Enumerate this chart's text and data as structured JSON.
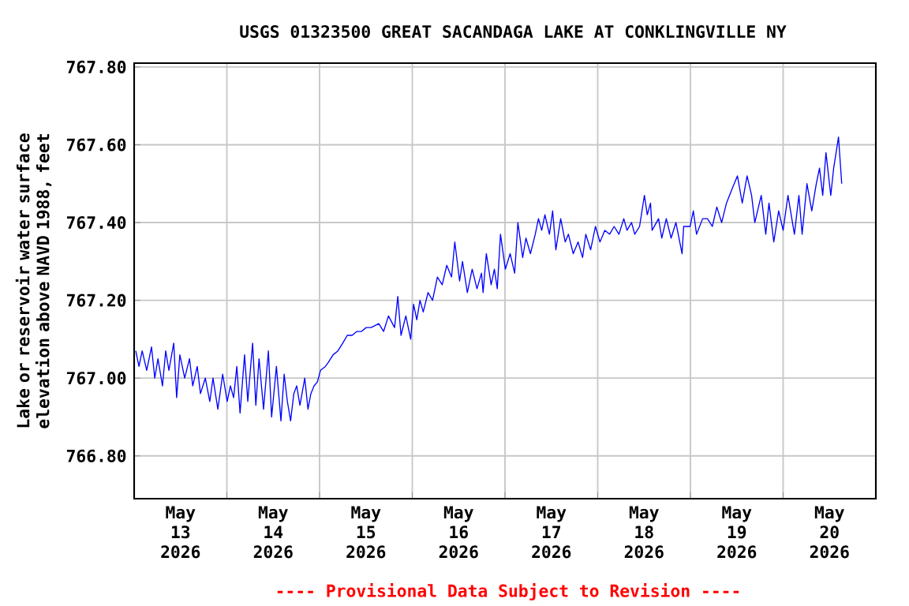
{
  "chart_data": {
    "type": "line",
    "title": "USGS 01323500 GREAT SACANDAGA LAKE AT CONKLINGVILLE NY",
    "ylabel": "Lake or reservoir water surface elevation above NAVD 1988, feet",
    "annotations": [
      "---- Provisional Data Subject to Revision ----"
    ],
    "xlim": [
      "2026-05-13T00:00",
      "2026-05-21T00:00"
    ],
    "ylim": [
      766.69,
      767.81
    ],
    "xticks": [
      {
        "value": "2026-05-13T12:00",
        "label": "May 13 2026"
      },
      {
        "value": "2026-05-14T00:00",
        "label": null
      },
      {
        "value": "2026-05-14T12:00",
        "label": "May 14 2026"
      },
      {
        "value": "2026-05-15T00:00",
        "label": null
      },
      {
        "value": "2026-05-15T12:00",
        "label": "May 15 2026"
      },
      {
        "value": "2026-05-16T00:00",
        "label": null
      },
      {
        "value": "2026-05-16T12:00",
        "label": "May 16 2026"
      },
      {
        "value": "2026-05-17T00:00",
        "label": null
      },
      {
        "value": "2026-05-17T12:00",
        "label": "May 17 2026"
      },
      {
        "value": "2026-05-18T00:00",
        "label": null
      },
      {
        "value": "2026-05-18T12:00",
        "label": "May 18 2026"
      },
      {
        "value": "2026-05-19T00:00",
        "label": null
      },
      {
        "value": "2026-05-19T12:00",
        "label": "May 19 2026"
      },
      {
        "value": "2026-05-20T00:00",
        "label": null
      },
      {
        "value": "2026-05-20T12:00",
        "label": "May 20 2026"
      }
    ],
    "yticks": [
      {
        "value": 766.8,
        "label": "766.80"
      },
      {
        "value": 767.0,
        "label": "767.00"
      },
      {
        "value": 767.2,
        "label": "767.20"
      },
      {
        "value": 767.4,
        "label": "767.40"
      },
      {
        "value": 767.6,
        "label": "767.60"
      },
      {
        "value": 767.8,
        "label": "767.80"
      }
    ],
    "grid": true,
    "x": [
      "2026-05-13T00:25",
      "2026-05-13T01:15",
      "2026-05-13T02:05",
      "2026-05-13T03:15",
      "2026-05-13T04:30",
      "2026-05-13T05:20",
      "2026-05-13T06:10",
      "2026-05-13T07:20",
      "2026-05-13T08:10",
      "2026-05-13T09:00",
      "2026-05-13T10:15",
      "2026-05-13T11:00",
      "2026-05-13T11:50",
      "2026-05-13T13:05",
      "2026-05-13T14:20",
      "2026-05-13T15:10",
      "2026-05-13T16:20",
      "2026-05-13T17:10",
      "2026-05-13T18:25",
      "2026-05-13T19:35",
      "2026-05-13T20:25",
      "2026-05-13T21:40",
      "2026-05-13T22:55",
      "2026-05-14T00:05",
      "2026-05-14T00:55",
      "2026-05-14T01:45",
      "2026-05-14T02:35",
      "2026-05-14T03:25",
      "2026-05-14T04:35",
      "2026-05-14T05:25",
      "2026-05-14T06:40",
      "2026-05-14T07:30",
      "2026-05-14T08:20",
      "2026-05-14T09:30",
      "2026-05-14T10:45",
      "2026-05-14T11:35",
      "2026-05-14T12:50",
      "2026-05-14T14:00",
      "2026-05-14T14:50",
      "2026-05-14T15:40",
      "2026-05-14T16:30",
      "2026-05-14T17:20",
      "2026-05-14T18:05",
      "2026-05-14T18:55",
      "2026-05-14T20:10",
      "2026-05-14T21:00",
      "2026-05-14T21:45",
      "2026-05-14T22:35",
      "2026-05-14T23:25",
      "2026-05-15T00:15",
      "2026-05-15T01:30",
      "2026-05-15T02:15",
      "2026-05-15T03:30",
      "2026-05-15T04:45",
      "2026-05-15T06:00",
      "2026-05-15T07:10",
      "2026-05-15T08:25",
      "2026-05-15T09:40",
      "2026-05-15T10:50",
      "2026-05-15T12:05",
      "2026-05-15T13:20",
      "2026-05-15T15:20",
      "2026-05-15T16:35",
      "2026-05-15T17:50",
      "2026-05-15T19:25",
      "2026-05-15T20:15",
      "2026-05-15T21:05",
      "2026-05-15T22:20",
      "2026-05-15T23:35",
      "2026-05-16T00:20",
      "2026-05-16T01:10",
      "2026-05-16T02:00",
      "2026-05-16T02:50",
      "2026-05-16T04:05",
      "2026-05-16T05:15",
      "2026-05-16T06:30",
      "2026-05-16T07:45",
      "2026-05-16T08:55",
      "2026-05-16T10:10",
      "2026-05-16T11:00",
      "2026-05-16T12:15",
      "2026-05-16T13:00",
      "2026-05-16T14:15",
      "2026-05-16T15:30",
      "2026-05-16T16:45",
      "2026-05-16T17:55",
      "2026-05-16T18:20",
      "2026-05-16T19:10",
      "2026-05-16T20:25",
      "2026-05-16T21:15",
      "2026-05-16T22:00",
      "2026-05-16T22:50",
      "2026-05-17T00:05",
      "2026-05-17T01:20",
      "2026-05-17T02:30",
      "2026-05-17T03:20",
      "2026-05-17T04:35",
      "2026-05-17T05:25",
      "2026-05-17T06:35",
      "2026-05-17T07:50",
      "2026-05-17T08:40",
      "2026-05-17T09:30",
      "2026-05-17T10:20",
      "2026-05-17T11:30",
      "2026-05-17T12:20",
      "2026-05-17T13:10",
      "2026-05-17T14:25",
      "2026-05-17T15:35",
      "2026-05-17T16:25",
      "2026-05-17T17:40",
      "2026-05-17T18:55",
      "2026-05-17T20:05",
      "2026-05-17T20:55",
      "2026-05-17T22:10",
      "2026-05-17T23:25",
      "2026-05-18T00:35",
      "2026-05-18T01:50",
      "2026-05-18T03:05",
      "2026-05-18T04:15",
      "2026-05-18T05:30",
      "2026-05-18T06:45",
      "2026-05-18T07:35",
      "2026-05-18T08:45",
      "2026-05-18T09:35",
      "2026-05-18T10:50",
      "2026-05-18T12:05",
      "2026-05-18T12:50",
      "2026-05-18T13:40",
      "2026-05-18T14:05",
      "2026-05-18T15:45",
      "2026-05-18T16:35",
      "2026-05-18T17:45",
      "2026-05-18T19:00",
      "2026-05-18T20:15",
      "2026-05-18T21:50",
      "2026-05-18T22:15",
      "2026-05-18T23:55",
      "2026-05-19T00:45",
      "2026-05-19T01:35",
      "2026-05-19T03:10",
      "2026-05-19T04:25",
      "2026-05-19T05:40",
      "2026-05-19T06:50",
      "2026-05-19T08:05",
      "2026-05-19T09:20",
      "2026-05-19T10:55",
      "2026-05-19T12:10",
      "2026-05-19T13:25",
      "2026-05-19T14:40",
      "2026-05-19T15:50",
      "2026-05-19T16:40",
      "2026-05-19T18:20",
      "2026-05-19T19:30",
      "2026-05-19T20:20",
      "2026-05-19T21:35",
      "2026-05-19T22:50",
      "2026-05-20T00:00",
      "2026-05-20T01:15",
      "2026-05-20T02:55",
      "2026-05-20T04:05",
      "2026-05-20T04:55",
      "2026-05-20T06:10",
      "2026-05-20T07:25",
      "2026-05-20T08:35",
      "2026-05-20T09:25",
      "2026-05-20T10:15",
      "2026-05-20T11:05",
      "2026-05-20T12:20",
      "2026-05-20T13:05",
      "2026-05-20T14:20",
      "2026-05-20T14:45",
      "2026-05-20T15:10"
    ],
    "series": [
      {
        "color": "#0000ff",
        "values": [
          767.07,
          767.03,
          767.07,
          767.02,
          767.08,
          767.0,
          767.05,
          766.98,
          767.07,
          767.02,
          767.09,
          766.95,
          767.06,
          767.0,
          767.05,
          766.98,
          767.03,
          766.96,
          767.0,
          766.94,
          767.0,
          766.92,
          767.01,
          766.94,
          766.98,
          766.95,
          767.03,
          766.91,
          767.06,
          766.94,
          767.09,
          766.93,
          767.05,
          766.92,
          767.07,
          766.9,
          767.03,
          766.89,
          767.01,
          766.94,
          766.89,
          766.96,
          766.98,
          766.93,
          767.0,
          766.92,
          766.96,
          766.98,
          766.99,
          767.02,
          767.03,
          767.04,
          767.06,
          767.07,
          767.09,
          767.11,
          767.11,
          767.12,
          767.12,
          767.13,
          767.13,
          767.14,
          767.12,
          767.16,
          767.13,
          767.21,
          767.11,
          767.16,
          767.1,
          767.19,
          767.15,
          767.2,
          767.17,
          767.22,
          767.2,
          767.26,
          767.24,
          767.29,
          767.26,
          767.35,
          767.25,
          767.3,
          767.22,
          767.28,
          767.23,
          767.27,
          767.22,
          767.32,
          767.24,
          767.28,
          767.23,
          767.37,
          767.28,
          767.32,
          767.27,
          767.4,
          767.31,
          767.36,
          767.32,
          767.37,
          767.41,
          767.38,
          767.42,
          767.37,
          767.43,
          767.33,
          767.41,
          767.35,
          767.37,
          767.32,
          767.35,
          767.31,
          767.37,
          767.33,
          767.39,
          767.35,
          767.38,
          767.37,
          767.39,
          767.37,
          767.41,
          767.38,
          767.4,
          767.37,
          767.39,
          767.47,
          767.42,
          767.45,
          767.38,
          767.41,
          767.36,
          767.41,
          767.36,
          767.4,
          767.32,
          767.39,
          767.39,
          767.43,
          767.37,
          767.41,
          767.41,
          767.39,
          767.44,
          767.4,
          767.45,
          767.49,
          767.52,
          767.45,
          767.52,
          767.47,
          767.4,
          767.47,
          767.37,
          767.45,
          767.35,
          767.43,
          767.38,
          767.47,
          767.37,
          767.47,
          767.37,
          767.5,
          767.43,
          767.5,
          767.54,
          767.47,
          767.58,
          767.47,
          767.54,
          767.62,
          767.56,
          767.5
        ]
      }
    ]
  }
}
